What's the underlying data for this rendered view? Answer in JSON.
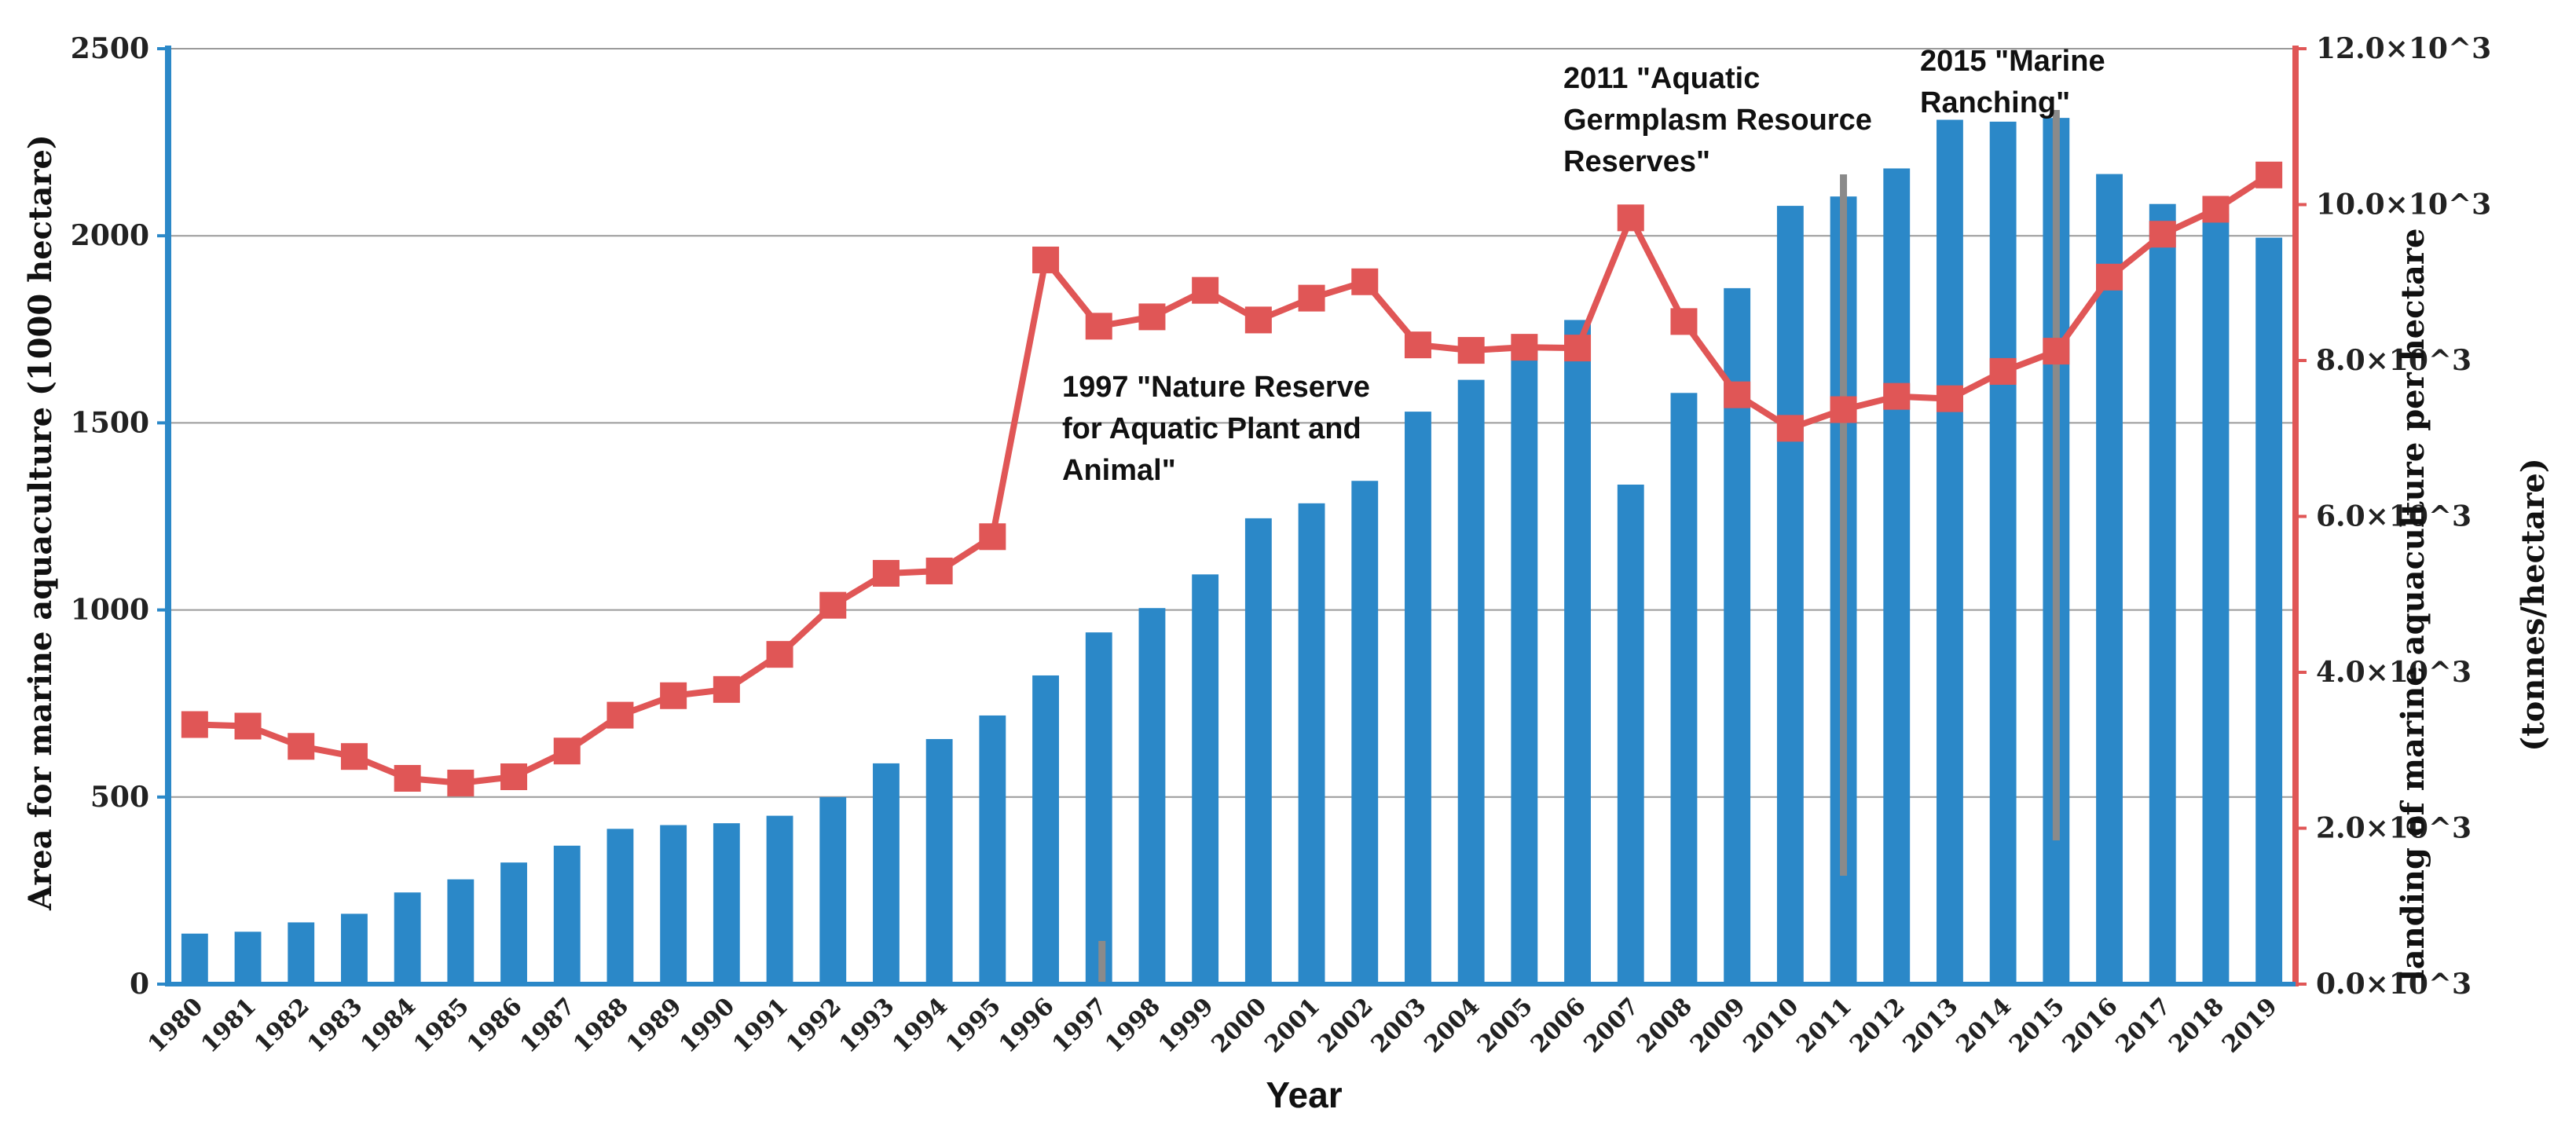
{
  "chart_data": {
    "type": "bar+line",
    "title": "",
    "xlabel": "Year",
    "ylabel_left": "Area for marine aquaculture (1000 hectare)",
    "ylabel_right_line1": "landing of marine aquaculture per hectare",
    "ylabel_right_line2": "(tonnes/hectare)",
    "ylim_left": [
      0,
      2500
    ],
    "ylim_right": [
      0,
      12000
    ],
    "y_left_ticks": [
      "0",
      "500",
      "1000",
      "1500",
      "2000",
      "2500"
    ],
    "y_right_ticks": [
      "0.0×10^3",
      "2.0×10^3",
      "4.0×10^3",
      "6.0×10^3",
      "8.0×10^3",
      "10.0×10^3",
      "12.0×10^3"
    ],
    "categories": [
      "1980",
      "1981",
      "1982",
      "1983",
      "1984",
      "1985",
      "1986",
      "1987",
      "1988",
      "1989",
      "1990",
      "1991",
      "1992",
      "1993",
      "1994",
      "1995",
      "1996",
      "1997",
      "1998",
      "1999",
      "2000",
      "2001",
      "2002",
      "2003",
      "2004",
      "2005",
      "2006",
      "2007",
      "2008",
      "2009",
      "2010",
      "2011",
      "2012",
      "2013",
      "2014",
      "2015",
      "2016",
      "2017",
      "2018",
      "2019"
    ],
    "series": [
      {
        "name": "Area for marine aquaculture",
        "type": "bar",
        "axis": "left",
        "color": "#2b88c8",
        "values": [
          135,
          140,
          165,
          188,
          245,
          280,
          325,
          370,
          415,
          425,
          430,
          450,
          500,
          590,
          655,
          718,
          825,
          940,
          1005,
          1095,
          1245,
          1285,
          1345,
          1530,
          1615,
          1700,
          1775,
          1335,
          1580,
          1860,
          2080,
          2105,
          2180,
          2310,
          2305,
          2315,
          2165,
          2085,
          2060,
          1995
        ]
      },
      {
        "name": "landing of marine aquaculture per hectare",
        "type": "line",
        "axis": "right",
        "color": "#e05656",
        "values": [
          3330,
          3310,
          3050,
          2920,
          2640,
          2580,
          2660,
          2990,
          3450,
          3700,
          3780,
          4230,
          4860,
          5270,
          5300,
          5740,
          9290,
          8440,
          8560,
          8900,
          8520,
          8800,
          9010,
          8200,
          8130,
          8170,
          8160,
          9830,
          8500,
          7560,
          7130,
          7370,
          7540,
          7510,
          7860,
          8120,
          9070,
          9620,
          9940,
          10380
        ]
      }
    ],
    "annotations": [
      {
        "year": "1997",
        "lines": [
          "1997 \"Nature Reserve",
          "for Aquatic  Plant and",
          "Animal\""
        ]
      },
      {
        "year": "2011",
        "lines": [
          "2011 \"Aquatic",
          "Germplasm Resource",
          "Reserves\""
        ]
      },
      {
        "year": "2015",
        "lines": [
          "2015 \"Marine",
          "Ranching\""
        ]
      }
    ]
  }
}
